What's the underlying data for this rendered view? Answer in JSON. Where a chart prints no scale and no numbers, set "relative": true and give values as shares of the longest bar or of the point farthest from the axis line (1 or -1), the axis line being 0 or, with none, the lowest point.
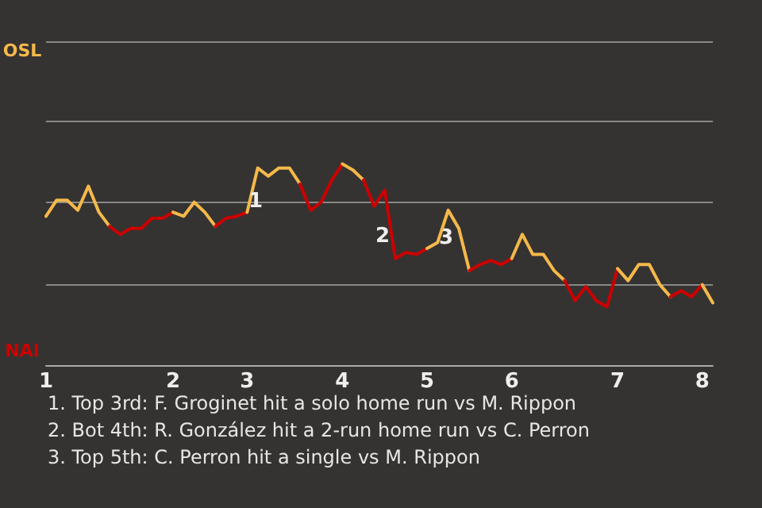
{
  "chart_data": {
    "type": "line",
    "categories": [
      "1",
      null,
      null,
      null,
      null,
      null,
      null,
      null,
      null,
      null,
      null,
      null,
      "2",
      null,
      null,
      null,
      null,
      null,
      null,
      "3",
      null,
      null,
      null,
      null,
      null,
      null,
      null,
      null,
      "4",
      null,
      null,
      null,
      null,
      null,
      null,
      null,
      "5",
      null,
      null,
      null,
      null,
      null,
      null,
      null,
      "6",
      null,
      null,
      null,
      null,
      null,
      null,
      null,
      null,
      null,
      "7",
      null,
      null,
      null,
      null,
      null,
      null,
      null,
      "8",
      null
    ],
    "relative": true,
    "series": [
      {
        "color": "#f5b94a",
        "values": [
          0.74,
          0.82,
          0.82,
          0.77,
          0.89,
          0.76,
          0.69,
          null,
          null,
          null,
          null,
          null,
          null,
          null,
          null,
          null,
          null,
          null,
          null,
          null,
          null,
          null,
          null,
          null,
          null,
          null,
          null,
          null,
          null,
          null,
          null,
          null,
          null,
          null,
          null,
          null,
          null,
          null,
          null,
          null,
          null,
          null,
          null,
          null,
          null,
          null,
          null,
          null,
          null,
          null,
          null,
          null,
          null,
          null,
          null,
          null,
          null,
          null,
          null,
          null,
          null,
          null,
          null,
          null
        ]
      },
      {
        "color": "#cc0000",
        "values": [
          null,
          null,
          null,
          null,
          null,
          null,
          0.69,
          0.65,
          0.68,
          0.68,
          0.73,
          0.73,
          0.76,
          null,
          null,
          null,
          null,
          null,
          null,
          null,
          null,
          null,
          null,
          null,
          null,
          null,
          null,
          null,
          null,
          null,
          null,
          null,
          null,
          null,
          null,
          null,
          null,
          null,
          null,
          null,
          null,
          null,
          null,
          null,
          null,
          null,
          null,
          null,
          null,
          null,
          null,
          null,
          null,
          null,
          null,
          null,
          null,
          null,
          null,
          null,
          null,
          null,
          null,
          null
        ]
      },
      {
        "color": "#f5b94a",
        "values": [
          null,
          null,
          null,
          null,
          null,
          null,
          null,
          null,
          null,
          null,
          null,
          null,
          0.76,
          0.74,
          0.81,
          0.76,
          0.69,
          null,
          null,
          null,
          null,
          null,
          null,
          null,
          null,
          null,
          null,
          null,
          null,
          null,
          null,
          null,
          null,
          null,
          null,
          null,
          null,
          null,
          null,
          null,
          null,
          null,
          null,
          null,
          null,
          null,
          null,
          null,
          null,
          null,
          null,
          null,
          null,
          null,
          null,
          null,
          null,
          null,
          null,
          null,
          null,
          null,
          null,
          null
        ]
      },
      {
        "color": "#cc0000",
        "values": [
          null,
          null,
          null,
          null,
          null,
          null,
          null,
          null,
          null,
          null,
          null,
          null,
          null,
          null,
          null,
          null,
          0.69,
          0.73,
          0.74,
          0.76,
          null,
          null,
          null,
          null,
          null,
          null,
          null,
          null,
          null,
          null,
          null,
          null,
          null,
          null,
          null,
          null,
          null,
          null,
          null,
          null,
          null,
          null,
          null,
          null,
          null,
          null,
          null,
          null,
          null,
          null,
          null,
          null,
          null,
          null,
          null,
          null,
          null,
          null,
          null,
          null,
          null,
          null,
          null,
          null
        ]
      },
      {
        "color": "#f5b94a",
        "values": [
          null,
          null,
          null,
          null,
          null,
          null,
          null,
          null,
          null,
          null,
          null,
          null,
          null,
          null,
          null,
          null,
          null,
          null,
          null,
          0.76,
          0.98,
          0.94,
          0.98,
          0.98,
          0.9,
          null,
          null,
          null,
          null,
          null,
          null,
          null,
          null,
          null,
          null,
          null,
          null,
          null,
          null,
          null,
          null,
          null,
          null,
          null,
          null,
          null,
          null,
          null,
          null,
          null,
          null,
          null,
          null,
          null,
          null,
          null,
          null,
          null,
          null,
          null,
          null,
          null,
          null,
          null
        ]
      },
      {
        "color": "#cc0000",
        "values": [
          null,
          null,
          null,
          null,
          null,
          null,
          null,
          null,
          null,
          null,
          null,
          null,
          null,
          null,
          null,
          null,
          null,
          null,
          null,
          null,
          null,
          null,
          null,
          null,
          0.9,
          0.77,
          0.81,
          0.92,
          1,
          null,
          null,
          null,
          null,
          null,
          null,
          null,
          null,
          null,
          null,
          null,
          null,
          null,
          null,
          null,
          null,
          null,
          null,
          null,
          null,
          null,
          null,
          null,
          null,
          null,
          null,
          null,
          null,
          null,
          null,
          null,
          null,
          null,
          null,
          null
        ]
      },
      {
        "color": "#f4b94a",
        "values": [
          null,
          null,
          null,
          null,
          null,
          null,
          null,
          null,
          null,
          null,
          null,
          null,
          null,
          null,
          null,
          null,
          null,
          null,
          null,
          null,
          null,
          null,
          null,
          null,
          null,
          null,
          null,
          null,
          1,
          0.97,
          0.92,
          null,
          null,
          null,
          null,
          null,
          null,
          null,
          null,
          null,
          null,
          null,
          null,
          null,
          null,
          null,
          null,
          null,
          null,
          null,
          null,
          null,
          null,
          null,
          null,
          null,
          null,
          null,
          null,
          null,
          null,
          null,
          null,
          null
        ]
      },
      {
        "color": "#cc0000",
        "values": [
          null,
          null,
          null,
          null,
          null,
          null,
          null,
          null,
          null,
          null,
          null,
          null,
          null,
          null,
          null,
          null,
          null,
          null,
          null,
          null,
          null,
          null,
          null,
          null,
          null,
          null,
          null,
          null,
          null,
          null,
          0.92,
          0.79,
          0.87,
          0.53,
          0.56,
          0.55,
          0.58,
          null,
          null,
          null,
          null,
          null,
          null,
          null,
          null,
          null,
          null,
          null,
          null,
          null,
          null,
          null,
          null,
          null,
          null,
          null,
          null,
          null,
          null,
          null,
          null,
          null,
          null,
          null
        ]
      },
      {
        "color": "#f5b94a",
        "values": [
          null,
          null,
          null,
          null,
          null,
          null,
          null,
          null,
          null,
          null,
          null,
          null,
          null,
          null,
          null,
          null,
          null,
          null,
          null,
          null,
          null,
          null,
          null,
          null,
          null,
          null,
          null,
          null,
          null,
          null,
          null,
          null,
          null,
          null,
          null,
          null,
          0.58,
          0.61,
          0.77,
          0.68,
          0.47,
          null,
          null,
          null,
          null,
          null,
          null,
          null,
          null,
          null,
          null,
          null,
          null,
          null,
          null,
          null,
          null,
          null,
          null,
          null,
          null,
          null,
          null,
          null
        ]
      },
      {
        "color": "#cc0000",
        "values": [
          null,
          null,
          null,
          null,
          null,
          null,
          null,
          null,
          null,
          null,
          null,
          null,
          null,
          null,
          null,
          null,
          null,
          null,
          null,
          null,
          null,
          null,
          null,
          null,
          null,
          null,
          null,
          null,
          null,
          null,
          null,
          null,
          null,
          null,
          null,
          null,
          null,
          null,
          null,
          null,
          0.47,
          0.5,
          0.52,
          0.5,
          0.53,
          null,
          null,
          null,
          null,
          null,
          null,
          null,
          null,
          null,
          null,
          null,
          null,
          null,
          null,
          null,
          null,
          null,
          null,
          null
        ]
      },
      {
        "color": "#f5b84a",
        "values": [
          null,
          null,
          null,
          null,
          null,
          null,
          null,
          null,
          null,
          null,
          null,
          null,
          null,
          null,
          null,
          null,
          null,
          null,
          null,
          null,
          null,
          null,
          null,
          null,
          null,
          null,
          null,
          null,
          null,
          null,
          null,
          null,
          null,
          null,
          null,
          null,
          null,
          null,
          null,
          null,
          null,
          null,
          null,
          null,
          0.53,
          0.65,
          0.55,
          0.55,
          0.47,
          0.42,
          null,
          null,
          null,
          null,
          null,
          null,
          null,
          null,
          null,
          null,
          null,
          null,
          null,
          null
        ]
      },
      {
        "color": "#cc0000",
        "values": [
          null,
          null,
          null,
          null,
          null,
          null,
          null,
          null,
          null,
          null,
          null,
          null,
          null,
          null,
          null,
          null,
          null,
          null,
          null,
          null,
          null,
          null,
          null,
          null,
          null,
          null,
          null,
          null,
          null,
          null,
          null,
          null,
          null,
          null,
          null,
          null,
          null,
          null,
          null,
          null,
          null,
          null,
          null,
          null,
          null,
          null,
          null,
          null,
          null,
          0.42,
          0.32,
          0.39,
          0.32,
          0.29,
          0.48,
          null,
          null,
          null,
          null,
          null,
          null,
          null,
          null,
          null
        ]
      },
      {
        "color": "#f5b94b",
        "values": [
          null,
          null,
          null,
          null,
          null,
          null,
          null,
          null,
          null,
          null,
          null,
          null,
          null,
          null,
          null,
          null,
          null,
          null,
          null,
          null,
          null,
          null,
          null,
          null,
          null,
          null,
          null,
          null,
          null,
          null,
          null,
          null,
          null,
          null,
          null,
          null,
          null,
          null,
          null,
          null,
          null,
          null,
          null,
          null,
          null,
          null,
          null,
          null,
          null,
          null,
          null,
          null,
          null,
          null,
          0.48,
          0.42,
          0.5,
          0.5,
          0.4,
          0.34,
          null,
          null,
          null,
          null
        ]
      },
      {
        "color": "#cc0000",
        "values": [
          null,
          null,
          null,
          null,
          null,
          null,
          null,
          null,
          null,
          null,
          null,
          null,
          null,
          null,
          null,
          null,
          null,
          null,
          null,
          null,
          null,
          null,
          null,
          null,
          null,
          null,
          null,
          null,
          null,
          null,
          null,
          null,
          null,
          null,
          null,
          null,
          null,
          null,
          null,
          null,
          null,
          null,
          null,
          null,
          null,
          null,
          null,
          null,
          null,
          null,
          null,
          null,
          null,
          null,
          null,
          null,
          null,
          null,
          null,
          0.34,
          0.37,
          0.34,
          0.4,
          null
        ]
      },
      {
        "color": "#f5b94a",
        "values": [
          null,
          null,
          null,
          null,
          null,
          null,
          null,
          null,
          null,
          null,
          null,
          null,
          null,
          null,
          null,
          null,
          null,
          null,
          null,
          null,
          null,
          null,
          null,
          null,
          null,
          null,
          null,
          null,
          null,
          null,
          null,
          null,
          null,
          null,
          null,
          null,
          null,
          null,
          null,
          null,
          null,
          null,
          null,
          null,
          null,
          null,
          null,
          null,
          null,
          null,
          null,
          null,
          null,
          null,
          null,
          null,
          null,
          null,
          null,
          null,
          null,
          null,
          0.4,
          0.31
        ]
      }
    ],
    "ref_lines": [
      {
        "axis": "y",
        "value": 0.4,
        "color": "#888888"
      },
      {
        "axis": "y",
        "value": 0.81,
        "color": "#888888"
      },
      {
        "axis": "y",
        "value": 1.21,
        "color": "#888888"
      },
      {
        "axis": "y",
        "value": 1.61,
        "color": "#888888"
      }
    ],
    "annotations": [
      "OSL",
      "NAI",
      "1",
      "2",
      "3",
      "1. Top 3rd: F. Groginet hit a solo home run vs M. Rippon",
      "2. Bot 4th: R. González hit a 2-run home run vs C. Perron",
      "3. Top 5th: C. Perron hit a single vs M. Rippon"
    ]
  }
}
